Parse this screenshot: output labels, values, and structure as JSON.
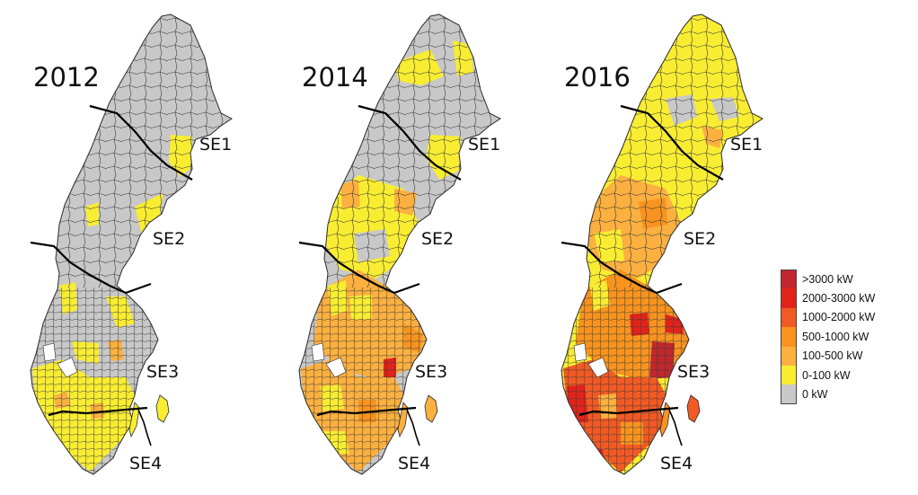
{
  "panels": [
    {
      "year": "2012",
      "zones": [
        "SE1",
        "SE2",
        "SE3",
        "SE4"
      ]
    },
    {
      "year": "2014",
      "zones": [
        "SE1",
        "SE2",
        "SE3",
        "SE4"
      ]
    },
    {
      "year": "2016",
      "zones": [
        "SE1",
        "SE2",
        "SE3",
        "SE4"
      ]
    }
  ],
  "legend": {
    "items": [
      {
        "label": ">3000 kW",
        "color": "#c1272d"
      },
      {
        "label": "2000-3000 kW",
        "color": "#e2231a"
      },
      {
        "label": "1000-2000 kW",
        "color": "#f15a24"
      },
      {
        "label": "500-1000 kW",
        "color": "#f7931e"
      },
      {
        "label": "100-500 kW",
        "color": "#fbb040"
      },
      {
        "label": "0-100 kW",
        "color": "#f9ed32"
      },
      {
        "label": "0 kW",
        "color": "#c8c8c8"
      }
    ]
  }
}
